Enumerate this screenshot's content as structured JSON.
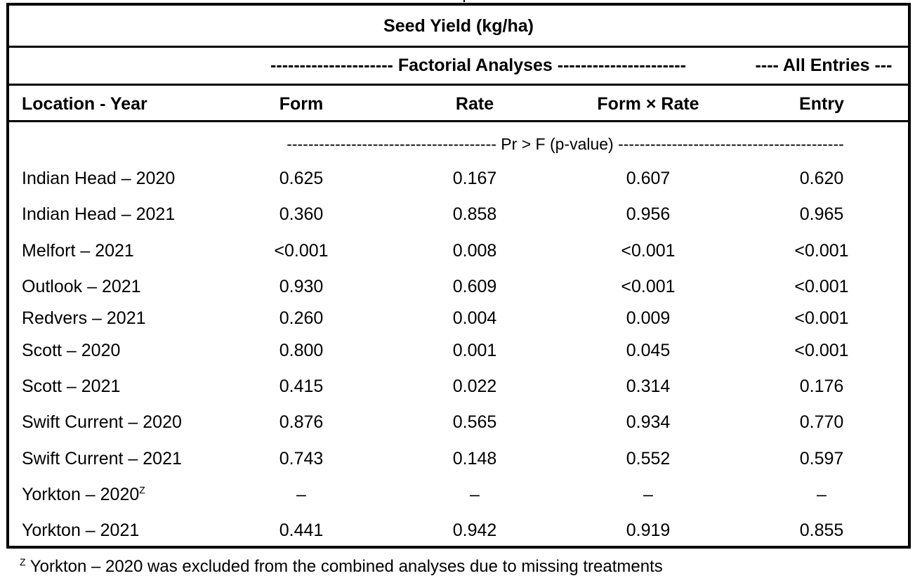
{
  "header": {
    "title": "Seed Yield (kg/ha)",
    "group_factorial": "--------------------- Factorial Analyses ----------------------",
    "group_all": "---- All Entries ---",
    "pvalue_label": "--------------------------------------- Pr > F (p-value) ------------------------------------------"
  },
  "columns": [
    "Location - Year",
    "Form",
    "Rate",
    "Form × Rate",
    "Entry"
  ],
  "rows": [
    {
      "location": "Indian Head – 2020",
      "sup": "",
      "form": "0.625",
      "rate": "0.167",
      "form_rate": "0.607",
      "entry": "0.620"
    },
    {
      "location": "Indian Head – 2021",
      "sup": "",
      "form": "0.360",
      "rate": "0.858",
      "form_rate": "0.956",
      "entry": "0.965"
    },
    {
      "location": "Melfort – 2021",
      "sup": "",
      "form": "<0.001",
      "rate": "0.008",
      "form_rate": "<0.001",
      "entry": "<0.001"
    },
    {
      "location": "Outlook – 2021",
      "sup": "",
      "form": "0.930",
      "rate": "0.609",
      "form_rate": "<0.001",
      "entry": "<0.001"
    },
    {
      "location": "Redvers – 2021",
      "sup": "",
      "form": "0.260",
      "rate": "0.004",
      "form_rate": "0.009",
      "entry": "<0.001"
    },
    {
      "location": "Scott – 2020",
      "sup": "",
      "form": "0.800",
      "rate": "0.001",
      "form_rate": "0.045",
      "entry": "<0.001"
    },
    {
      "location": "Scott – 2021",
      "sup": "",
      "form": "0.415",
      "rate": "0.022",
      "form_rate": "0.314",
      "entry": "0.176"
    },
    {
      "location": "Swift Current – 2020",
      "sup": "",
      "form": "0.876",
      "rate": "0.565",
      "form_rate": "0.934",
      "entry": "0.770"
    },
    {
      "location": "Swift Current – 2021",
      "sup": "",
      "form": "0.743",
      "rate": "0.148",
      "form_rate": "0.552",
      "entry": "0.597"
    },
    {
      "location": "Yorkton – 2020",
      "sup": "Z",
      "form": "–",
      "rate": "–",
      "form_rate": "–",
      "entry": "–"
    },
    {
      "location": "Yorkton – 2021",
      "sup": "",
      "form": "0.441",
      "rate": "0.942",
      "form_rate": "0.919",
      "entry": "0.855"
    }
  ],
  "footnote": {
    "marker": "Z",
    "text": " Yorkton – 2020 was excluded from the combined analyses due to missing treatments"
  }
}
